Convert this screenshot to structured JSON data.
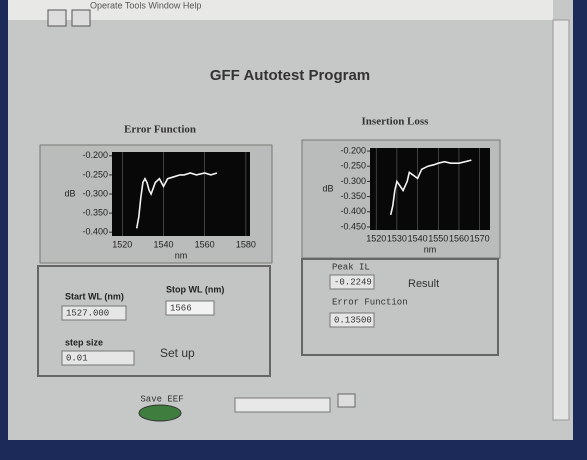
{
  "menu": "Operate Tools Window Help",
  "title": "GFF Autotest Program",
  "charts": [
    {
      "type": "line",
      "title": "Error Function",
      "ylabel": "dB",
      "xlabel": "nm",
      "xlim": [
        1515,
        1582
      ],
      "xticks": [
        1520,
        1540,
        1560,
        1580
      ],
      "ylim": [
        -0.41,
        -0.19
      ],
      "yticks": [
        {
          "value": -0.2,
          "label": "-0.200"
        },
        {
          "value": -0.25,
          "label": "-0.250"
        },
        {
          "value": -0.3,
          "label": "-0.300"
        },
        {
          "value": -0.35,
          "label": "-0.350"
        },
        {
          "value": -0.4,
          "label": "-0.400"
        }
      ],
      "grid": true,
      "series": [
        {
          "color": "#f2f2f2",
          "x": [
            1527,
            1528,
            1529,
            1530,
            1531,
            1532,
            1533,
            1534,
            1536,
            1538,
            1540,
            1542,
            1545,
            1548,
            1550,
            1553,
            1556,
            1560,
            1563,
            1566
          ],
          "values": [
            -0.39,
            -0.36,
            -0.31,
            -0.27,
            -0.26,
            -0.27,
            -0.29,
            -0.3,
            -0.27,
            -0.26,
            -0.28,
            -0.26,
            -0.255,
            -0.25,
            -0.25,
            -0.245,
            -0.25,
            -0.245,
            -0.25,
            -0.245
          ]
        }
      ]
    },
    {
      "type": "line",
      "title": "Insertion Loss",
      "ylabel": "dB",
      "xlabel": "nm",
      "xlim": [
        1517,
        1575
      ],
      "xticks": [
        1520,
        1530,
        1540,
        1550,
        1560,
        1570
      ],
      "ylim": [
        -0.46,
        -0.19
      ],
      "yticks": [
        {
          "value": -0.2,
          "label": "-0.200"
        },
        {
          "value": -0.25,
          "label": "-0.250"
        },
        {
          "value": -0.3,
          "label": "-0.300"
        },
        {
          "value": -0.35,
          "label": "-0.350"
        },
        {
          "value": -0.4,
          "label": "-0.400"
        },
        {
          "value": -0.45,
          "label": "-0.450"
        }
      ],
      "grid": true,
      "series": [
        {
          "color": "#f2f2f2",
          "x": [
            1527,
            1528,
            1529,
            1530,
            1531,
            1533,
            1535,
            1536,
            1538,
            1540,
            1542,
            1545,
            1548,
            1550,
            1553,
            1556,
            1560,
            1563,
            1566
          ],
          "values": [
            -0.41,
            -0.38,
            -0.33,
            -0.3,
            -0.31,
            -0.33,
            -0.3,
            -0.27,
            -0.28,
            -0.29,
            -0.26,
            -0.25,
            -0.245,
            -0.24,
            -0.235,
            -0.24,
            -0.24,
            -0.235,
            -0.23
          ]
        }
      ]
    }
  ],
  "controls": {
    "start_wl": {
      "label": "Start WL (nm)",
      "value": "1527.000"
    },
    "stop_wl": {
      "label": "Stop WL (nm)",
      "value": "1566"
    },
    "step_size": {
      "label": "step size",
      "value": "0.01"
    },
    "setup": "Set up",
    "peak_il": {
      "label": "Peak IL",
      "value": "-0.2249"
    },
    "result": "Result",
    "error_function": {
      "label": "Error Function",
      "value": "0.13500"
    },
    "save": "Save EEF"
  }
}
